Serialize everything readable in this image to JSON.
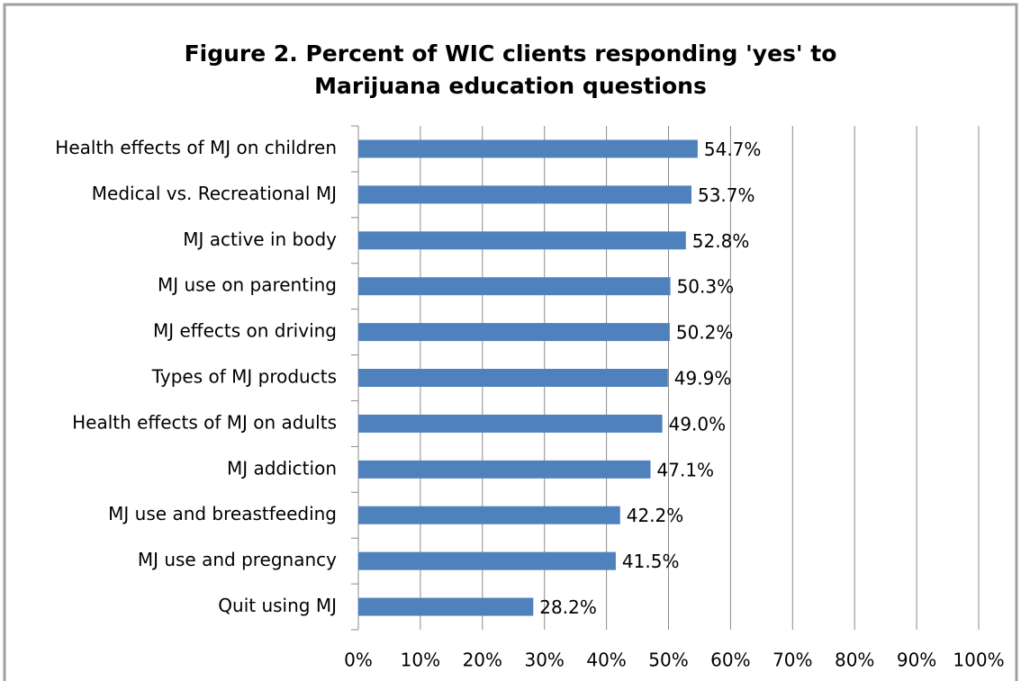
{
  "chart_data": {
    "type": "bar",
    "orientation": "horizontal",
    "title": "Figure 2. Percent of WIC clients responding 'yes' to Marijuana education questions",
    "categories": [
      "Health effects of MJ on children",
      "Medical vs. Recreational MJ",
      "MJ active in body",
      "MJ use on parenting",
      "MJ effects on driving",
      "Types of MJ products",
      "Health effects of MJ on adults",
      "MJ addiction",
      "MJ use and breastfeeding",
      "MJ use and pregnancy",
      "Quit using MJ"
    ],
    "values": [
      54.7,
      53.7,
      52.8,
      50.3,
      50.2,
      49.9,
      49.0,
      47.1,
      42.2,
      41.5,
      28.2
    ],
    "value_labels": [
      "54.7%",
      "53.7%",
      "52.8%",
      "50.3%",
      "50.2%",
      "49.9%",
      "49.0%",
      "47.1%",
      "42.2%",
      "41.5%",
      "28.2%"
    ],
    "color": "#4f81bd",
    "xlim": [
      0,
      100
    ],
    "xticks": [
      {
        "value": 0,
        "label": "0%"
      },
      {
        "value": 10,
        "label": "10%"
      },
      {
        "value": 20,
        "label": "20%"
      },
      {
        "value": 30,
        "label": "30%"
      },
      {
        "value": 40,
        "label": "40%"
      },
      {
        "value": 50,
        "label": "50%"
      },
      {
        "value": 60,
        "label": "60%"
      },
      {
        "value": 70,
        "label": "70%"
      },
      {
        "value": 80,
        "label": "80%"
      },
      {
        "value": 90,
        "label": "90%"
      },
      {
        "value": 100,
        "label": "100%"
      }
    ],
    "grid": true
  }
}
